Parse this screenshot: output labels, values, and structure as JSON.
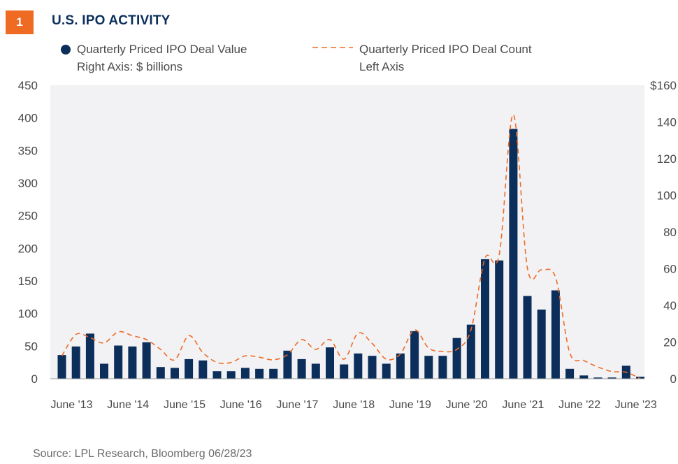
{
  "figure": {
    "number": "1",
    "title": "U.S. IPO ACTIVITY"
  },
  "legend": [
    {
      "marker": "dot",
      "line1": "Quarterly Priced IPO Deal Value",
      "line2": "Right Axis: $ billions"
    },
    {
      "marker": "dashed-line",
      "line1": "Quarterly Priced IPO Deal Count",
      "line2": "Left Axis"
    }
  ],
  "source": "Source: LPL Research, Bloomberg  06/28/23",
  "colors": {
    "navy": "#0b2e5b",
    "orange": "#ef6b24",
    "plot_bg": "#f2f2f4",
    "text": "#4a4a4a"
  },
  "chart_data": {
    "type": "bar",
    "left_axis": {
      "ylim": [
        0,
        450
      ],
      "ticks": [
        0,
        50,
        100,
        150,
        200,
        250,
        300,
        350,
        400,
        450
      ],
      "labels": [
        "0",
        "50",
        "100",
        "150",
        "200",
        "250",
        "300",
        "350",
        "400",
        "450"
      ]
    },
    "right_axis": {
      "ylim": [
        0,
        160
      ],
      "ticks": [
        0,
        20,
        40,
        60,
        80,
        100,
        120,
        140,
        160
      ],
      "labels": [
        "0",
        "20",
        "40",
        "60",
        "80",
        "100",
        "120",
        "140",
        "$160"
      ]
    },
    "x_labels": [
      {
        "index": 0,
        "label": "June '13"
      },
      {
        "index": 4,
        "label": "June '14"
      },
      {
        "index": 8,
        "label": "June '15"
      },
      {
        "index": 12,
        "label": "June '16"
      },
      {
        "index": 16,
        "label": "June '17"
      },
      {
        "index": 20,
        "label": "June '18"
      },
      {
        "index": 24,
        "label": "June '19"
      },
      {
        "index": 28,
        "label": "June '20"
      },
      {
        "index": 32,
        "label": "June '21"
      },
      {
        "index": 36,
        "label": "June '22"
      },
      {
        "index": 40,
        "label": "June '23"
      }
    ],
    "series": [
      {
        "name": "Quarterly Priced IPO Deal Value",
        "type": "bar",
        "axis": "right",
        "values": [
          12.9,
          17.6,
          24.6,
          8.2,
          18.1,
          17.6,
          19.9,
          6.4,
          5.9,
          10.7,
          10.0,
          4.1,
          4.1,
          5.9,
          5.4,
          5.4,
          15.3,
          10.7,
          8.2,
          17.1,
          7.8,
          13.8,
          12.5,
          8.2,
          13.8,
          26.0,
          12.5,
          12.5,
          22.2,
          29.5,
          65.2,
          64.5,
          136.2,
          45.1,
          37.7,
          48.2,
          5.4,
          1.8,
          0.7,
          0.7,
          7.1,
          1.1
        ]
      },
      {
        "name": "Quarterly Priced IPO Deal Count",
        "type": "line",
        "axis": "left",
        "values": [
          35,
          68,
          63,
          55,
          72,
          66,
          60,
          45,
          29,
          66,
          40,
          25,
          25,
          35,
          33,
          29,
          37,
          60,
          45,
          60,
          30,
          70,
          54,
          30,
          38,
          75,
          47,
          42,
          45,
          75,
          185,
          190,
          405,
          170,
          167,
          155,
          40,
          28,
          18,
          11,
          10,
          0
        ]
      }
    ]
  }
}
